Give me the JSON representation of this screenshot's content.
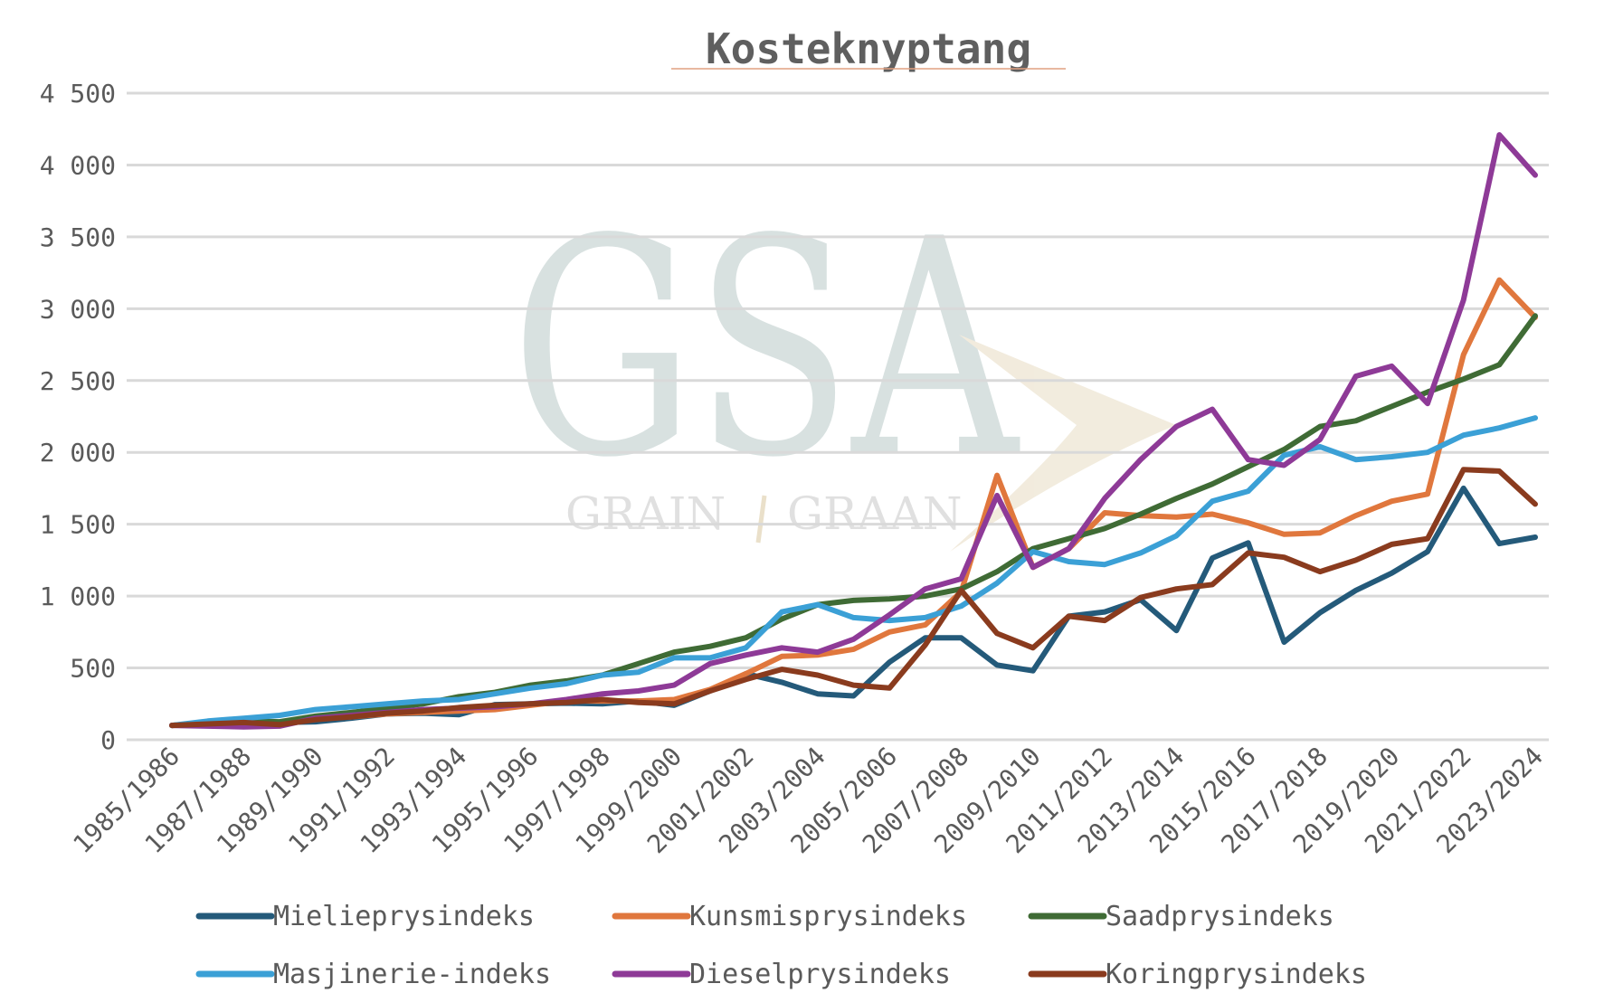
{
  "chart_data": {
    "type": "line",
    "title": "Kosteknyptang",
    "xlabel": "",
    "ylabel": "",
    "ylim": [
      0,
      4500
    ],
    "yticks": [
      0,
      500,
      1000,
      1500,
      2000,
      2500,
      3000,
      3500,
      4000,
      4500
    ],
    "ytick_labels": [
      "0",
      "500",
      "1 000",
      "1 500",
      "2 000",
      "2 500",
      "3 000",
      "3 500",
      "4 000",
      "4 500"
    ],
    "grid": "horizontal",
    "legend_position": "bottom",
    "categories": [
      "1985/1986",
      "1986/1987",
      "1987/1988",
      "1988/1989",
      "1989/1990",
      "1990/1991",
      "1991/1992",
      "1992/1993",
      "1993/1994",
      "1994/1995",
      "1995/1996",
      "1996/1997",
      "1997/1998",
      "1998/1999",
      "1999/2000",
      "2000/2001",
      "2001/2002",
      "2002/2003",
      "2003/2004",
      "2004/2005",
      "2005/2006",
      "2006/2007",
      "2007/2008",
      "2008/2009",
      "2009/2010",
      "2010/2011",
      "2011/2012",
      "2012/2013",
      "2013/2014",
      "2014/2015",
      "2015/2016",
      "2016/2017",
      "2017/2018",
      "2018/2019",
      "2019/2020",
      "2020/2021",
      "2021/2022",
      "2022/2023",
      "2023/2024"
    ],
    "x_tick_labels": [
      "1985/1986",
      "1987/1988",
      "1989/1990",
      "1991/1992",
      "1993/1994",
      "1995/1996",
      "1997/1998",
      "1999/2000",
      "2001/2002",
      "2003/2004",
      "2005/2006",
      "2007/2008",
      "2009/2010",
      "2011/2012",
      "2013/2014",
      "2015/2016",
      "2017/2018",
      "2019/2020",
      "2021/2022",
      "2023/2024"
    ],
    "series": [
      {
        "name": "Mielieprysindeks",
        "color": "#245a7a",
        "values": [
          100,
          115,
          130,
          120,
          125,
          150,
          180,
          185,
          175,
          245,
          250,
          255,
          250,
          270,
          240,
          340,
          460,
          400,
          320,
          305,
          540,
          710,
          710,
          520,
          480,
          860,
          890,
          975,
          760,
          1265,
          1370,
          680,
          885,
          1040,
          1160,
          1310,
          1750,
          1365,
          1410
        ]
      },
      {
        "name": "Kunsmisprysindeks",
        "color": "#e0773d",
        "values": [
          100,
          105,
          110,
          115,
          145,
          160,
          180,
          190,
          200,
          210,
          240,
          270,
          270,
          270,
          280,
          350,
          460,
          580,
          590,
          630,
          750,
          800,
          1030,
          1840,
          1200,
          1330,
          1580,
          1560,
          1550,
          1570,
          1510,
          1430,
          1440,
          1560,
          1660,
          1710,
          2680,
          3200,
          2940
        ]
      },
      {
        "name": "Saadprysindeks",
        "color": "#3f6b35",
        "values": [
          100,
          120,
          130,
          125,
          165,
          190,
          220,
          250,
          300,
          330,
          380,
          410,
          450,
          530,
          610,
          650,
          710,
          840,
          940,
          970,
          980,
          1000,
          1050,
          1170,
          1330,
          1400,
          1470,
          1570,
          1680,
          1780,
          1900,
          2020,
          2180,
          2220,
          2320,
          2420,
          2510,
          2610,
          2950
        ]
      },
      {
        "name": "Masjinerie-indeks",
        "color": "#3ba0d6",
        "values": [
          100,
          130,
          150,
          170,
          210,
          230,
          250,
          270,
          280,
          320,
          360,
          390,
          450,
          470,
          570,
          570,
          640,
          890,
          940,
          850,
          830,
          850,
          930,
          1090,
          1310,
          1240,
          1220,
          1300,
          1420,
          1660,
          1730,
          1980,
          2040,
          1950,
          1970,
          2000,
          2120,
          2170,
          2240
        ]
      },
      {
        "name": "Dieselprysindeks",
        "color": "#8e3a97",
        "values": [
          100,
          95,
          90,
          95,
          150,
          170,
          190,
          210,
          220,
          230,
          250,
          280,
          320,
          340,
          380,
          530,
          590,
          640,
          610,
          700,
          870,
          1050,
          1120,
          1700,
          1200,
          1330,
          1680,
          1950,
          2180,
          2300,
          1950,
          1910,
          2090,
          2530,
          2600,
          2340,
          3060,
          4210,
          3930
        ]
      },
      {
        "name": "Koringprysindeks",
        "color": "#8a3b1e",
        "values": [
          100,
          110,
          120,
          105,
          140,
          160,
          185,
          200,
          225,
          240,
          250,
          260,
          280,
          260,
          250,
          340,
          420,
          490,
          450,
          380,
          360,
          660,
          1040,
          740,
          640,
          860,
          830,
          990,
          1050,
          1080,
          1300,
          1270,
          1170,
          1250,
          1360,
          1400,
          1880,
          1870,
          1640
        ]
      }
    ]
  },
  "watermark": {
    "logo_text": "GSA",
    "tagline_left": "GRAIN",
    "tagline_right": "GRAAN"
  }
}
